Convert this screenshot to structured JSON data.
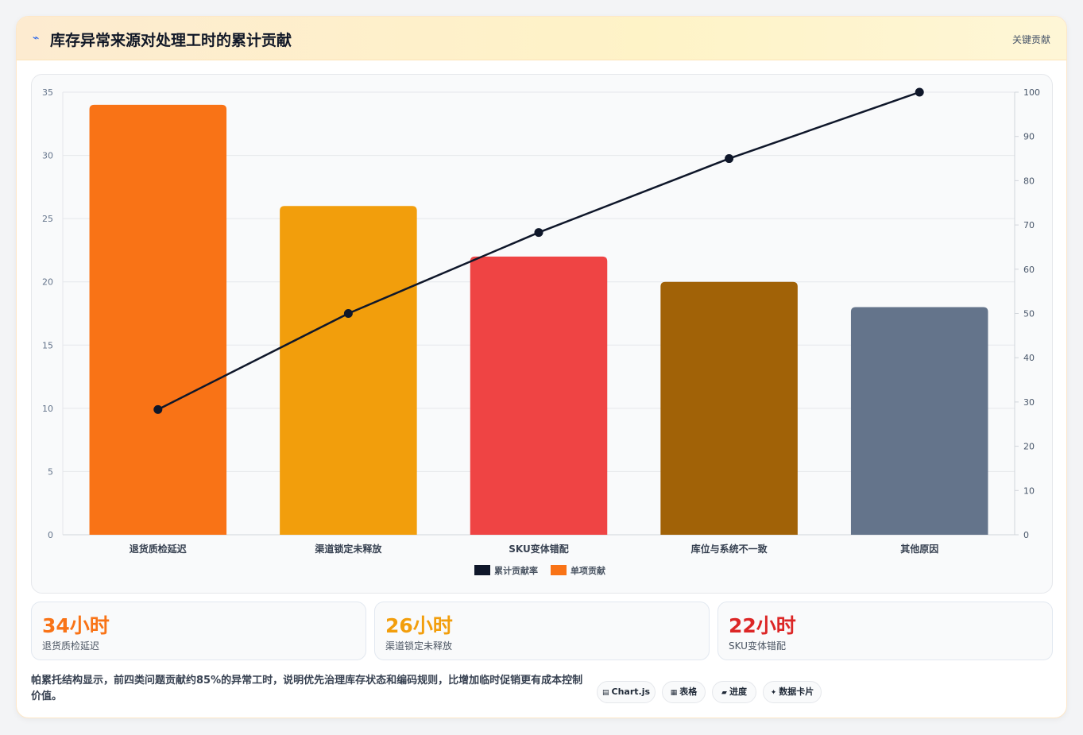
{
  "header": {
    "icon": "lightning-icon",
    "title": "库存异常来源对处理工时的累计贡献",
    "tag": "关键贡献"
  },
  "chart_data": {
    "type": "bar",
    "categories": [
      "退货质检延迟",
      "渠道锁定未释放",
      "SKU变体错配",
      "库位与系统不一致",
      "其他原因"
    ],
    "series": [
      {
        "name": "单项贡献",
        "type": "bar",
        "axis": "left",
        "values": [
          34,
          26,
          22,
          20,
          18
        ],
        "colors": [
          "#f97316",
          "#f29e0c",
          "#ef4444",
          "#a16207",
          "#64748b"
        ]
      },
      {
        "name": "累计贡献率",
        "type": "line",
        "axis": "right",
        "values": [
          28.3,
          50.0,
          68.3,
          85.0,
          100.0
        ],
        "color": "#0f172a"
      }
    ],
    "y_left": {
      "min": 0,
      "max": 35,
      "ticks": [
        0,
        5,
        10,
        15,
        20,
        25,
        30,
        35
      ]
    },
    "y_right": {
      "min": 0,
      "max": 100,
      "ticks": [
        0,
        10,
        20,
        30,
        40,
        50,
        60,
        70,
        80,
        90,
        100
      ]
    },
    "legend": [
      {
        "label": "累计贡献率",
        "color": "#0f172a"
      },
      {
        "label": "单项贡献",
        "color": "#f97316"
      }
    ],
    "legend_position": "bottom",
    "grid": true
  },
  "stats": [
    {
      "value": "34小时",
      "label": "退货质检延迟",
      "color": "#f97316"
    },
    {
      "value": "26小时",
      "label": "渠道锁定未释放",
      "color": "#f29e0c"
    },
    {
      "value": "22小时",
      "label": "SKU变体错配",
      "color": "#dc2626"
    }
  ],
  "note": "帕累托结构显示，前四类问题贡献约85%的异常工时，说明优先治理库存状态和编码规则，比增加临时促销更有成本控制价值。",
  "chips": [
    {
      "icon": "chart-icon",
      "glyph": "▤",
      "label": "Chart.js"
    },
    {
      "icon": "table-icon",
      "glyph": "▦",
      "label": "表格"
    },
    {
      "icon": "progress-icon",
      "glyph": "▰",
      "label": "进度"
    },
    {
      "icon": "sparkle-icon",
      "glyph": "✦",
      "label": "数据卡片"
    }
  ]
}
